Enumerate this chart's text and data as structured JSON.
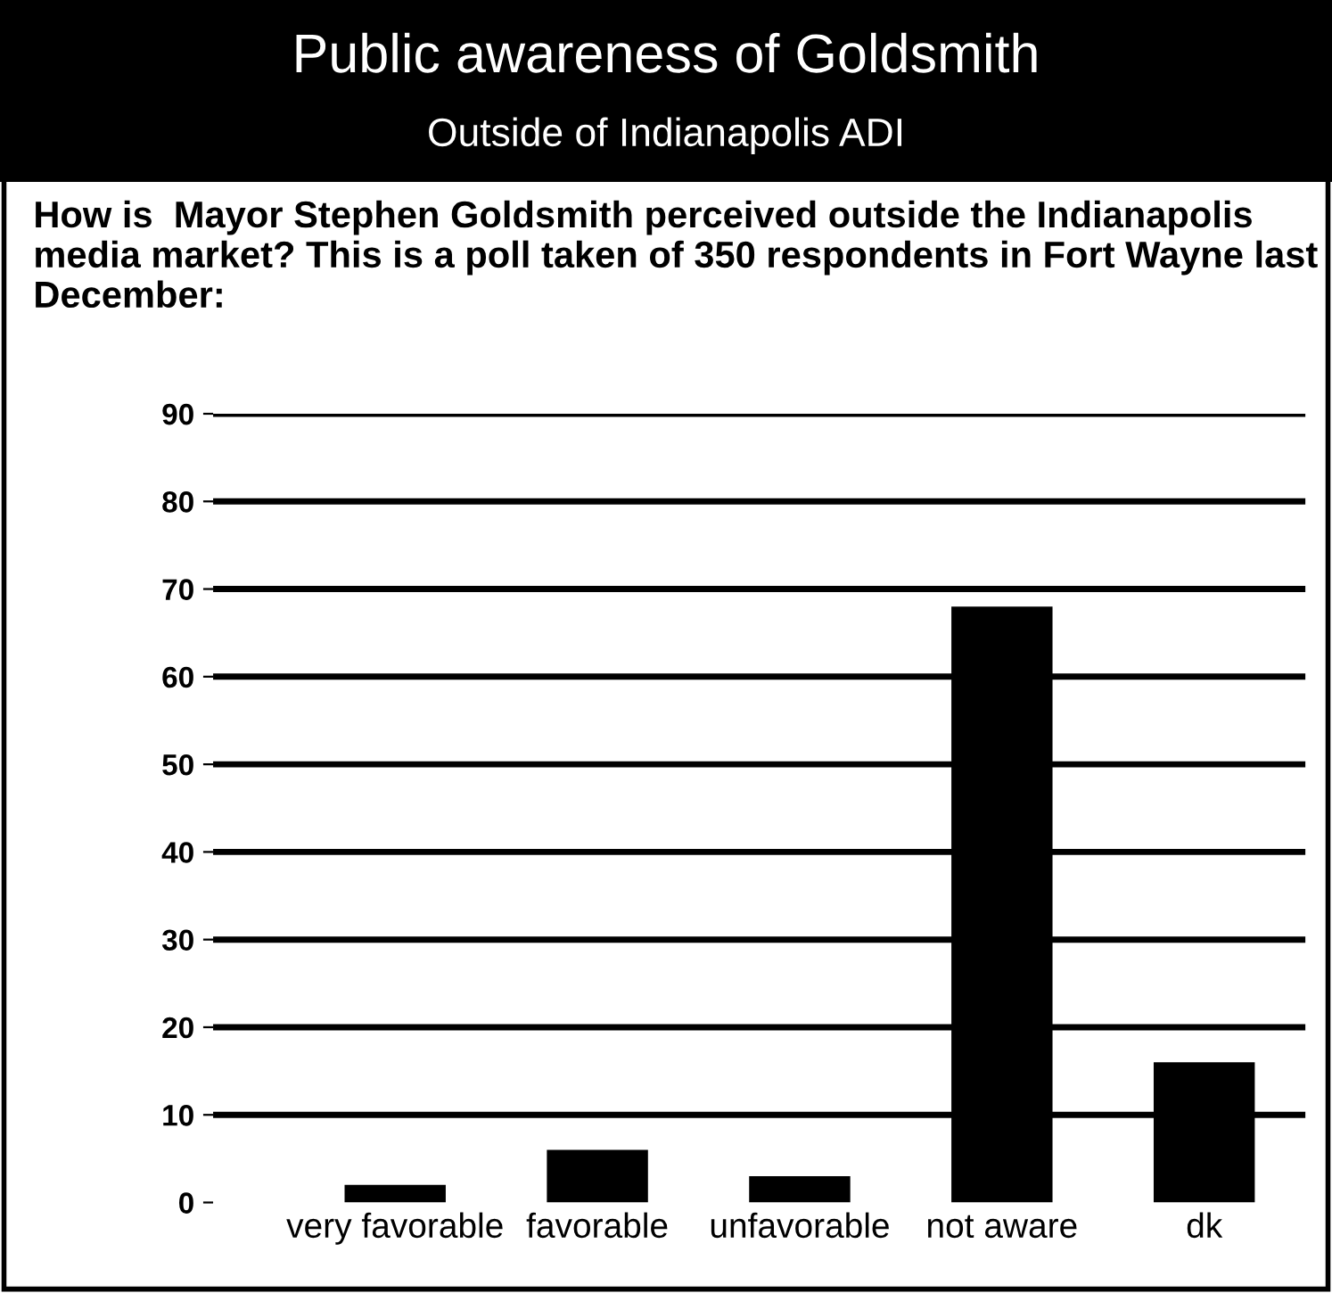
{
  "chart_data": {
    "type": "bar",
    "title": "Public awareness of Goldsmith",
    "subtitle": "Outside of Indianapolis ADI",
    "annotations": [
      "How is  Mayor Stephen Goldsmith perceived outside the Indianapolis media market? This is a poll taken of 350 respondents in Fort Wayne last December:"
    ],
    "categories": [
      "very favorable",
      "favorable",
      "unfavorable",
      "not aware",
      "dk"
    ],
    "values": [
      2,
      6,
      3,
      68,
      16
    ],
    "color": "#000000",
    "ylim": [
      0,
      90
    ],
    "yticks": [
      0,
      10,
      20,
      30,
      40,
      50,
      60,
      70,
      80,
      90
    ],
    "grid": "y"
  }
}
